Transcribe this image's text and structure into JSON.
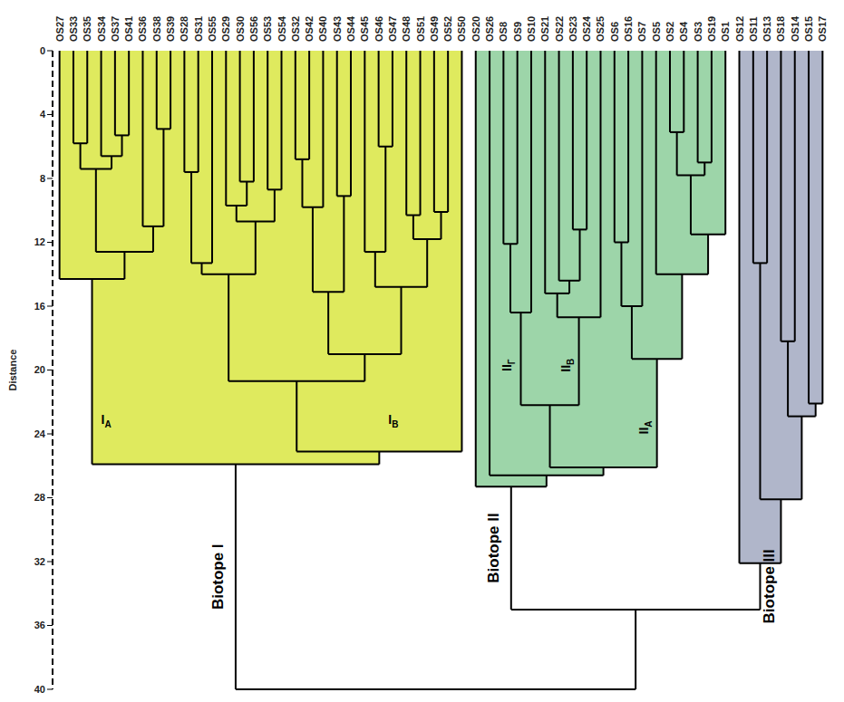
{
  "chart_data": {
    "type": "dendrogram",
    "y_label": "Distance",
    "ylim": [
      0,
      40
    ],
    "yticks": [
      0,
      4,
      8,
      12,
      16,
      20,
      24,
      28,
      32,
      36,
      40
    ],
    "tree": {
      "height": 40,
      "children": [
        {
          "height": 25.9,
          "label": "Biotope I",
          "color": "#dfea5e",
          "children": [
            {
              "height": 14.3,
              "label": {
                "text": "I",
                "sub": "A"
              },
              "children": [
                "OS27",
                {
                  "height": 12.6,
                  "children": [
                    {
                      "height": 7.4,
                      "children": [
                        {
                          "height": 5.8,
                          "children": [
                            "OS33",
                            "OS35"
                          ]
                        },
                        {
                          "height": 6.6,
                          "children": [
                            "OS34",
                            {
                              "height": 5.3,
                              "children": [
                                "OS37",
                                "OS41"
                              ]
                            }
                          ]
                        }
                      ]
                    },
                    {
                      "height": 11.0,
                      "children": [
                        "OS36",
                        {
                          "height": 4.9,
                          "children": [
                            "OS38",
                            "OS39"
                          ]
                        }
                      ]
                    }
                  ]
                }
              ]
            },
            {
              "height": 25.1,
              "label": {
                "text": "I",
                "sub": "B"
              },
              "children": [
                {
                  "height": 20.7,
                  "children": [
                    {
                      "height": 14.0,
                      "children": [
                        {
                          "height": 13.3,
                          "children": [
                            {
                              "height": 7.6,
                              "children": [
                                "OS28",
                                "OS31"
                              ]
                            },
                            "OS55"
                          ]
                        },
                        {
                          "height": 10.7,
                          "children": [
                            {
                              "height": 9.7,
                              "children": [
                                "OS29",
                                {
                                  "height": 8.2,
                                  "children": [
                                    "OS30",
                                    "OS56"
                                  ]
                                }
                              ]
                            },
                            {
                              "height": 8.7,
                              "children": [
                                "OS53",
                                "OS54"
                              ]
                            }
                          ]
                        }
                      ]
                    },
                    {
                      "height": 19.0,
                      "children": [
                        {
                          "height": 15.1,
                          "children": [
                            {
                              "height": 9.8,
                              "children": [
                                {
                                  "height": 6.8,
                                  "children": [
                                    "OS32",
                                    "OS42"
                                  ]
                                },
                                "OS40"
                              ]
                            },
                            {
                              "height": 9.1,
                              "children": [
                                "OS43",
                                "OS44"
                              ]
                            }
                          ]
                        },
                        {
                          "height": 14.8,
                          "children": [
                            {
                              "height": 12.6,
                              "children": [
                                "OS45",
                                {
                                  "height": 6.0,
                                  "children": [
                                    "OS46",
                                    "OS47"
                                  ]
                                }
                              ]
                            },
                            {
                              "height": 11.8,
                              "children": [
                                {
                                  "height": 10.3,
                                  "children": [
                                    "OS48",
                                    "OS51"
                                  ]
                                },
                                {
                                  "height": 10.1,
                                  "children": [
                                    "OS49",
                                    "OS52"
                                  ]
                                }
                              ]
                            }
                          ]
                        }
                      ]
                    }
                  ]
                },
                "OS50"
              ]
            }
          ]
        },
        {
          "height": 35.0,
          "children": [
            {
              "height": 27.3,
              "label": "Biotope II",
              "color": "#9dd5a9",
              "children": [
                "OS20",
                {
                  "height": 26.6,
                  "children": [
                    "OS26",
                    {
                      "height": 26.1,
                      "children": [
                        {
                          "height": 22.2,
                          "children": [
                            {
                              "height": 16.4,
                              "label": {
                                "text": "II",
                                "sub": "Г"
                              },
                              "children": [
                                {
                                  "height": 12.1,
                                  "children": [
                                    "OS8",
                                    "OS9"
                                  ]
                                },
                                "OS10"
                              ]
                            },
                            {
                              "height": 16.7,
                              "label": {
                                "text": "II",
                                "sub": "B"
                              },
                              "children": [
                                {
                                  "height": 15.2,
                                  "children": [
                                    "OS21",
                                    {
                                      "height": 14.4,
                                      "children": [
                                        "OS22",
                                        {
                                          "height": 11.2,
                                          "children": [
                                            "OS23",
                                            "OS24"
                                          ]
                                        }
                                      ]
                                    }
                                  ]
                                },
                                "OS25"
                              ]
                            }
                          ]
                        },
                        {
                          "height": 19.3,
                          "label": {
                            "text": "II",
                            "sub": "A"
                          },
                          "children": [
                            {
                              "height": 16.0,
                              "children": [
                                {
                                  "height": 12.0,
                                  "children": [
                                    "OS6",
                                    "OS16"
                                  ]
                                },
                                "OS7"
                              ]
                            },
                            {
                              "height": 14.0,
                              "children": [
                                "OS5",
                                {
                                  "height": 11.5,
                                  "children": [
                                    {
                                      "height": 7.8,
                                      "children": [
                                        {
                                          "height": 5.1,
                                          "children": [
                                            "OS2",
                                            "OS4"
                                          ]
                                        },
                                        {
                                          "height": 7.0,
                                          "children": [
                                            "OS3",
                                            "OS19"
                                          ]
                                        }
                                      ]
                                    },
                                    "OS1"
                                  ]
                                }
                              ]
                            }
                          ]
                        }
                      ]
                    }
                  ]
                }
              ]
            },
            {
              "height": 32.1,
              "label": "Biotope III",
              "color": "#b0b6ca",
              "children": [
                "OS12",
                {
                  "height": 28.1,
                  "children": [
                    {
                      "height": 13.3,
                      "children": [
                        "OS11",
                        "OS13"
                      ]
                    },
                    {
                      "height": 22.9,
                      "children": [
                        {
                          "height": 18.2,
                          "children": [
                            "OS18",
                            "OS14"
                          ]
                        },
                        {
                          "height": 22.1,
                          "children": [
                            "OS15",
                            "OS17"
                          ]
                        }
                      ]
                    }
                  ]
                }
              ]
            }
          ]
        }
      ]
    }
  }
}
